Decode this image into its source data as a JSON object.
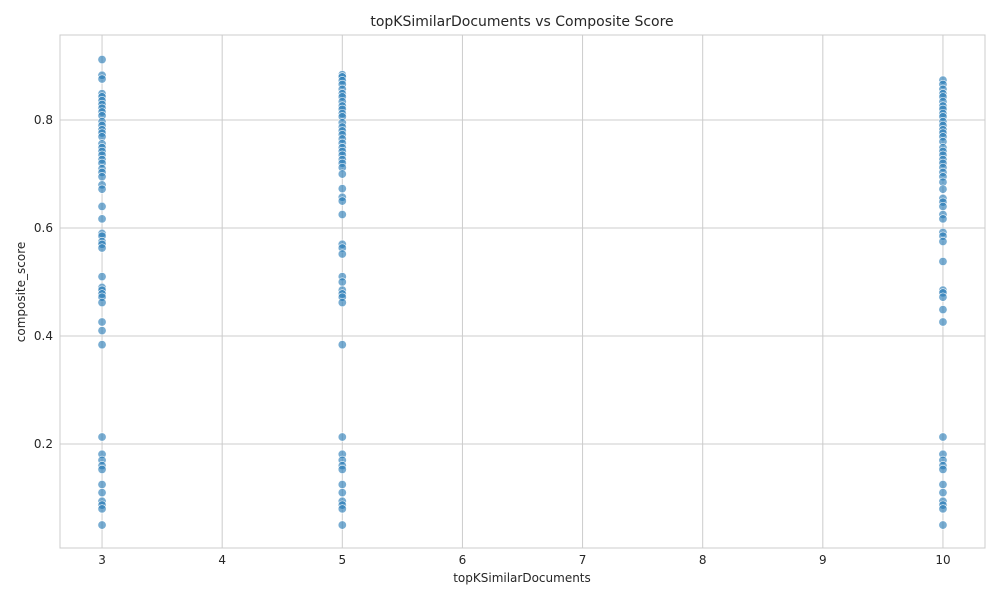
{
  "chart_data": {
    "type": "scatter",
    "title": "topKSimilarDocuments vs Composite Score",
    "xlabel": "topKSimilarDocuments",
    "ylabel": "composite_score",
    "xlim": [
      2.65,
      10.35
    ],
    "ylim": [
      0.0075,
      0.9575
    ],
    "xticks": [
      3,
      4,
      5,
      6,
      7,
      8,
      9,
      10
    ],
    "yticks": [
      0.2,
      0.4,
      0.6,
      0.8
    ],
    "ytick_labels": [
      "0.2",
      "0.4",
      "0.6",
      "0.8"
    ],
    "grid": true,
    "point_color": "#1f77b4",
    "series": [
      {
        "x_value": 3,
        "values": [
          0.912,
          0.883,
          0.876,
          0.849,
          0.843,
          0.836,
          0.829,
          0.822,
          0.815,
          0.808,
          0.797,
          0.79,
          0.782,
          0.776,
          0.769,
          0.756,
          0.749,
          0.742,
          0.735,
          0.727,
          0.72,
          0.71,
          0.703,
          0.695,
          0.68,
          0.672,
          0.64,
          0.617,
          0.59,
          0.585,
          0.575,
          0.57,
          0.563,
          0.51,
          0.49,
          0.485,
          0.478,
          0.472,
          0.462,
          0.426,
          0.41,
          0.384,
          0.213,
          0.181,
          0.17,
          0.16,
          0.153,
          0.125,
          0.11,
          0.094,
          0.087,
          0.08,
          0.05
        ]
      },
      {
        "x_value": 5,
        "values": [
          0.884,
          0.88,
          0.873,
          0.866,
          0.857,
          0.849,
          0.843,
          0.834,
          0.826,
          0.82,
          0.812,
          0.806,
          0.795,
          0.787,
          0.78,
          0.773,
          0.765,
          0.757,
          0.749,
          0.742,
          0.735,
          0.727,
          0.72,
          0.712,
          0.7,
          0.673,
          0.657,
          0.65,
          0.625,
          0.57,
          0.563,
          0.552,
          0.51,
          0.5,
          0.485,
          0.478,
          0.472,
          0.462,
          0.384,
          0.213,
          0.181,
          0.17,
          0.16,
          0.153,
          0.125,
          0.11,
          0.094,
          0.087,
          0.08,
          0.05
        ]
      },
      {
        "x_value": 10,
        "values": [
          0.874,
          0.866,
          0.857,
          0.849,
          0.843,
          0.834,
          0.826,
          0.82,
          0.812,
          0.806,
          0.797,
          0.79,
          0.782,
          0.776,
          0.769,
          0.76,
          0.749,
          0.742,
          0.735,
          0.727,
          0.72,
          0.712,
          0.703,
          0.695,
          0.685,
          0.672,
          0.655,
          0.648,
          0.64,
          0.625,
          0.617,
          0.592,
          0.585,
          0.575,
          0.538,
          0.485,
          0.48,
          0.472,
          0.449,
          0.426,
          0.213,
          0.181,
          0.17,
          0.16,
          0.153,
          0.125,
          0.11,
          0.094,
          0.087,
          0.08,
          0.05
        ]
      }
    ]
  }
}
